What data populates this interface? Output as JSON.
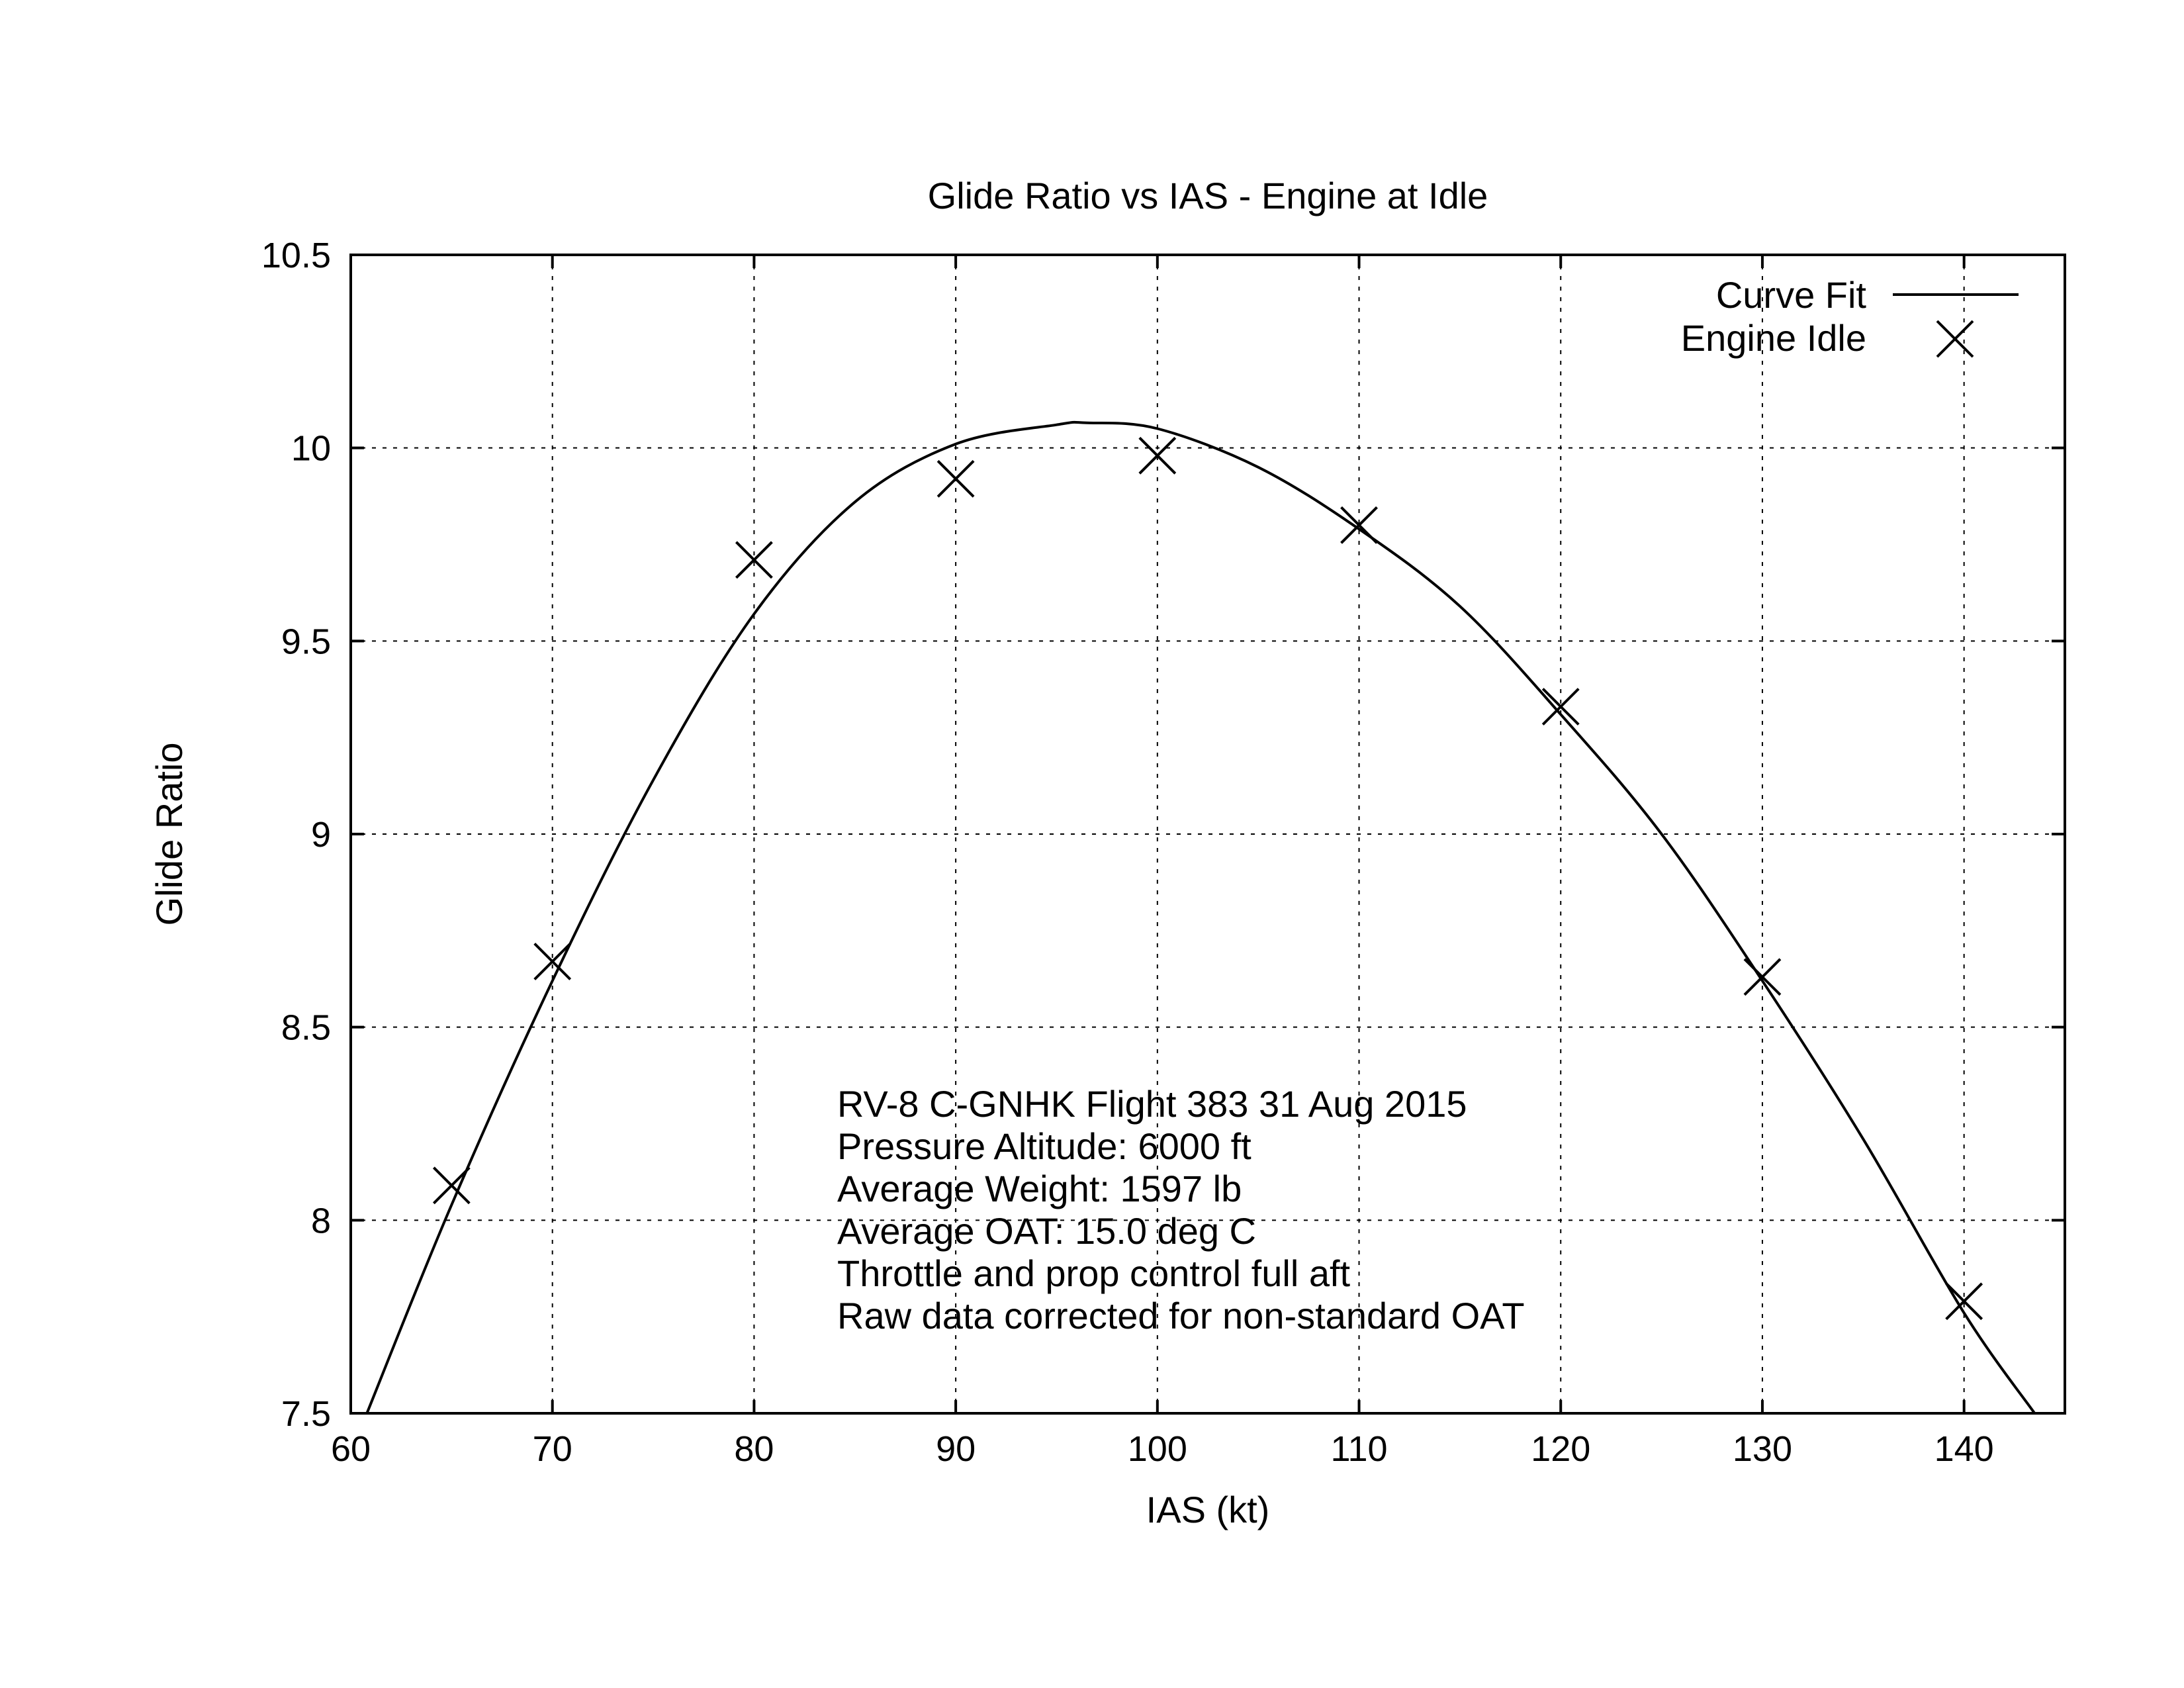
{
  "chart_data": {
    "type": "scatter",
    "title": "Glide Ratio vs IAS - Engine at Idle",
    "xlabel": "IAS (kt)",
    "ylabel": "Glide Ratio",
    "xlim": [
      60,
      145
    ],
    "ylim": [
      7.5,
      10.5
    ],
    "x_ticks": [
      60,
      70,
      80,
      90,
      100,
      110,
      120,
      130,
      140
    ],
    "y_ticks": [
      7.5,
      8,
      8.5,
      9,
      9.5,
      10,
      10.5
    ],
    "x_tick_labels": [
      "60",
      "70",
      "80",
      "90",
      "100",
      "110",
      "120",
      "130",
      "140"
    ],
    "y_tick_labels": [
      "7.5",
      "8",
      "8.5",
      "9",
      "9.5",
      "10",
      "10.5"
    ],
    "grid": true,
    "legend_position": "top-right",
    "series": [
      {
        "name": "Curve Fit",
        "kind": "line",
        "x": [
          60.8,
          65,
          70,
          75,
          80,
          85,
          90,
          95,
          96.5,
          100,
          105,
          110,
          115,
          120,
          125,
          130,
          135,
          140,
          143.5
        ],
        "y": [
          7.5,
          8.04,
          8.62,
          9.14,
          9.57,
          9.86,
          10.01,
          10.06,
          10.065,
          10.05,
          9.95,
          9.79,
          9.59,
          9.31,
          9.0,
          8.62,
          8.21,
          7.76,
          7.5
        ]
      },
      {
        "name": "Engine Idle",
        "kind": "points",
        "marker": "x",
        "x": [
          65,
          70,
          80,
          90,
          100,
          110,
          120,
          130,
          140
        ],
        "y": [
          8.09,
          8.67,
          9.71,
          9.92,
          9.98,
          9.8,
          9.33,
          8.63,
          7.79
        ]
      }
    ],
    "annotations": [
      "RV-8 C-GNHK Flight 383 31 Aug 2015",
      "Pressure Altitude: 6000 ft",
      "Average Weight: 1597 lb",
      "Average OAT: 15.0 deg C",
      "Throttle and prop control full aft",
      "Raw data corrected for non-standard OAT"
    ]
  }
}
